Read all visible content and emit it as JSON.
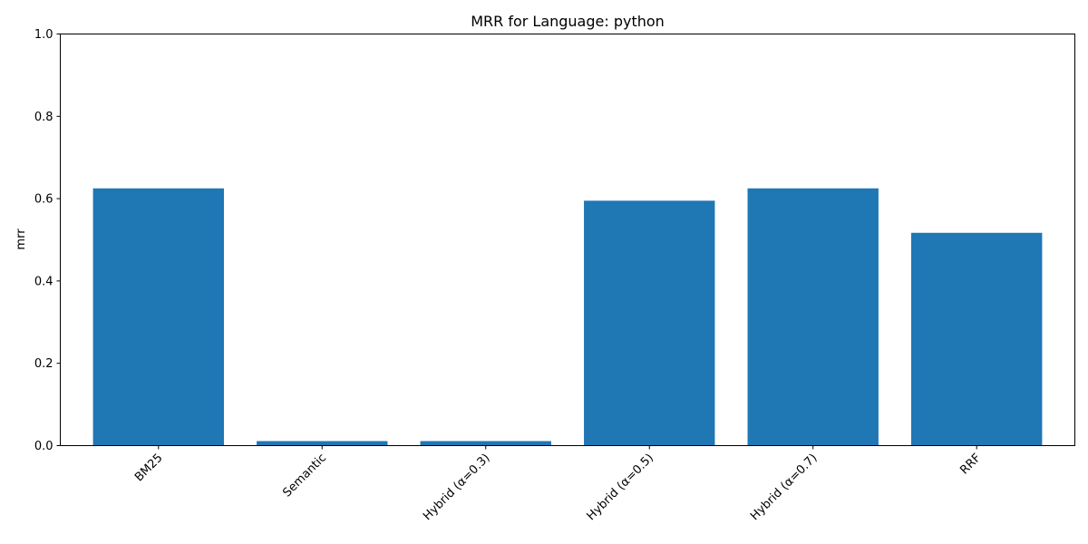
{
  "chart_data": {
    "type": "bar",
    "title": "MRR for Language: python",
    "xlabel": "",
    "ylabel": "mrr",
    "categories": [
      "BM25",
      "Semantic",
      "Hybrid (α=0.3)",
      "Hybrid (α=0.5)",
      "Hybrid (α=0.7)",
      "RRF"
    ],
    "values": [
      0.625,
      0.011,
      0.011,
      0.595,
      0.625,
      0.517
    ],
    "ylim": [
      0,
      1.0
    ],
    "yticks": [
      "0.0",
      "0.2",
      "0.4",
      "0.6",
      "0.8",
      "1.0"
    ],
    "bar_color": "#1f77b4",
    "grid": false,
    "legend": "none"
  }
}
